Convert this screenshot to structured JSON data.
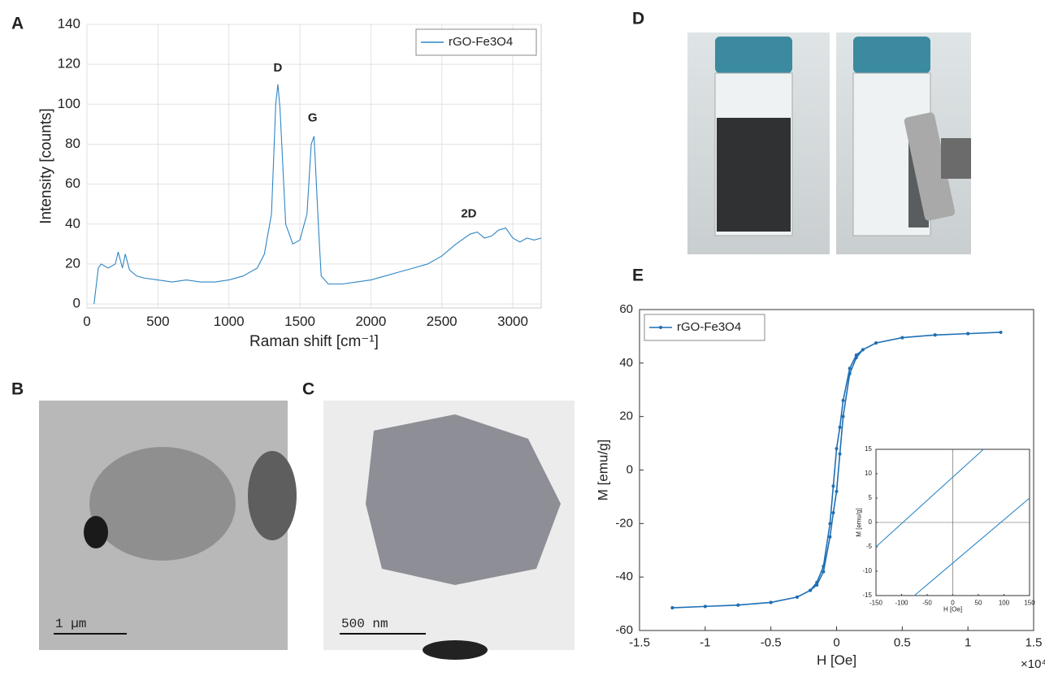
{
  "panel_labels": [
    "A",
    "B",
    "C",
    "D",
    "E"
  ],
  "images": {
    "B": {
      "scale_bar": "1 µm"
    },
    "C": {
      "scale_bar": "500 nm"
    }
  },
  "chart_data": [
    {
      "type": "line",
      "xlabel": "Raman shift [cm⁻¹]",
      "ylabel": "Intensity [counts]",
      "annotations": [
        "D",
        "G",
        "2D"
      ],
      "xlim": [
        0,
        3200
      ],
      "ylim": [
        -2,
        140
      ],
      "xticks": [
        0,
        500,
        1000,
        1500,
        2000,
        2500,
        3000
      ],
      "yticks": [
        0,
        20,
        40,
        60,
        80,
        100,
        120,
        140
      ],
      "grid": true,
      "legend": "upper right",
      "markers": false,
      "series": [
        {
          "name": "rGO-Fe3O4",
          "color": "#2f86c4",
          "x": [
            50,
            80,
            100,
            150,
            200,
            220,
            250,
            270,
            300,
            350,
            400,
            500,
            600,
            700,
            800,
            900,
            1000,
            1100,
            1200,
            1250,
            1300,
            1330,
            1345,
            1360,
            1400,
            1450,
            1500,
            1550,
            1580,
            1600,
            1630,
            1650,
            1700,
            1800,
            1900,
            2000,
            2100,
            2200,
            2300,
            2400,
            2500,
            2600,
            2700,
            2750,
            2800,
            2850,
            2900,
            2950,
            3000,
            3050,
            3100,
            3150,
            3200
          ],
          "values": [
            0,
            18,
            20,
            18,
            20,
            26,
            18,
            25,
            17,
            14,
            13,
            12,
            11,
            12,
            11,
            11,
            12,
            14,
            18,
            25,
            45,
            100,
            110,
            98,
            40,
            30,
            32,
            45,
            80,
            84,
            40,
            14,
            10,
            10,
            11,
            12,
            14,
            16,
            18,
            20,
            24,
            30,
            35,
            36,
            33,
            34,
            37,
            38,
            33,
            31,
            33,
            32,
            33
          ]
        }
      ]
    },
    {
      "type": "line",
      "xlabel": "H [Oe]",
      "ylabel": "M [emu/g]",
      "xaxis_exponent": "×10⁴",
      "xlim": [
        -15000,
        15000
      ],
      "ylim": [
        -60,
        60
      ],
      "xticks": [
        {
          "value": -15000,
          "label": "-1.5"
        },
        {
          "value": -10000,
          "label": "-1"
        },
        {
          "value": -5000,
          "label": "-0.5"
        },
        0,
        {
          "value": 5000,
          "label": "0.5"
        },
        {
          "value": 10000,
          "label": "1"
        },
        {
          "value": 15000,
          "label": "1.5"
        }
      ],
      "yticks": [
        -60,
        -40,
        -20,
        0,
        20,
        40,
        60
      ],
      "grid": false,
      "legend": "upper left",
      "markers": true,
      "series": [
        {
          "name": "rGO-Fe3O4",
          "color": "#1f6fb4",
          "x": [
            -12500,
            -10000,
            -7500,
            -5000,
            -3000,
            -2000,
            -1500,
            -1000,
            -500,
            -250,
            0,
            250,
            500,
            1000,
            1500,
            2000,
            3000,
            5000,
            7500,
            10000,
            12500,
            10000,
            7500,
            5000,
            3000,
            2000,
            1500,
            1000,
            500,
            250,
            0,
            -250,
            -500,
            -1000,
            -1500,
            -2000,
            -3000,
            -5000,
            -7500,
            -10000,
            -12500
          ],
          "values": [
            -51.5,
            -51,
            -50.5,
            -49.5,
            -47.5,
            -45,
            -43,
            -38,
            -25,
            -16,
            -8,
            6,
            20,
            36,
            42,
            45,
            47.5,
            49.5,
            50.5,
            51,
            51.5,
            51,
            50.5,
            49.5,
            47.5,
            45,
            43,
            38,
            26,
            16,
            8,
            -6,
            -20,
            -36,
            -42,
            -45,
            -47.5,
            -49.5,
            -50.5,
            -51,
            -51.5
          ]
        }
      ]
    },
    {
      "type": "line",
      "xlabel": "H [Oe]",
      "ylabel": "M [emu/g]",
      "xlim": [
        -150,
        150
      ],
      "ylim": [
        -15,
        15
      ],
      "xticks": [
        -150,
        -100,
        -50,
        0,
        50,
        100,
        150
      ],
      "yticks": [
        -15,
        -10,
        -5,
        0,
        5,
        10,
        15
      ],
      "grid": false,
      "zero_lines": true,
      "markers": false,
      "series": [
        {
          "color": "#2f86c4",
          "x": [
            -150,
            60
          ],
          "values": [
            -5,
            15
          ]
        },
        {
          "color": "#2f86c4",
          "x": [
            -75,
            150
          ],
          "values": [
            -15,
            5
          ]
        }
      ]
    }
  ]
}
